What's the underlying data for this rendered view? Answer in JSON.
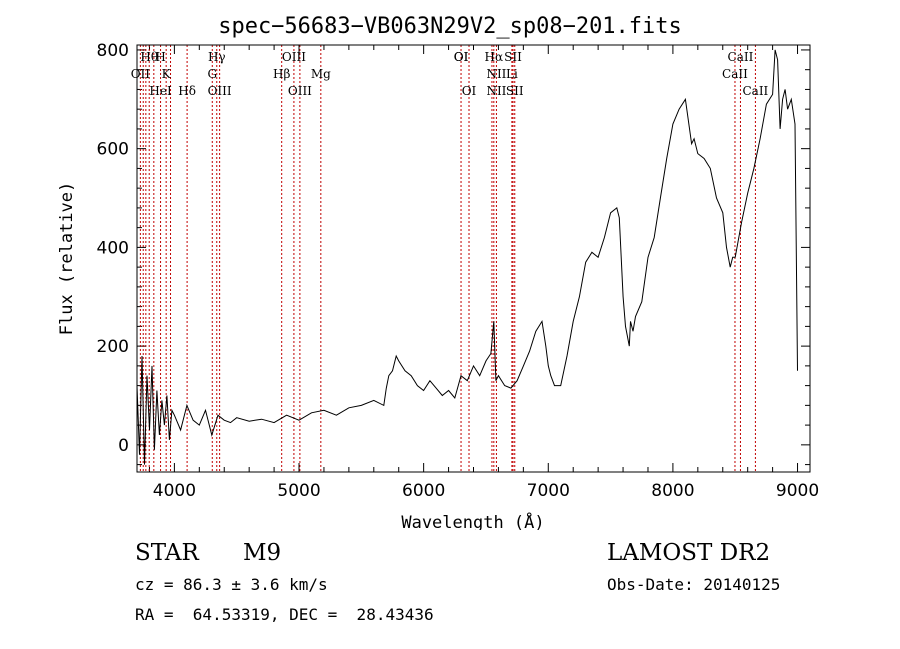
{
  "chart_data": {
    "type": "line",
    "title": "spec−56683−VB063N29V2_sp08−201.fits",
    "xlabel": "Wavelength (Å)",
    "ylabel": "Flux (relative)",
    "xlim": [
      3700,
      9100
    ],
    "ylim": [
      -55,
      810
    ],
    "xticks": [
      4000,
      5000,
      6000,
      7000,
      8000,
      9000
    ],
    "yticks": [
      0,
      200,
      400,
      600,
      800
    ],
    "grid": false,
    "series": [
      {
        "x": [
          3700,
          3720,
          3740,
          3760,
          3780,
          3800,
          3820,
          3840,
          3860,
          3880,
          3900,
          3920,
          3940,
          3960,
          3980,
          4000,
          4050,
          4100,
          4150,
          4200,
          4250,
          4300,
          4350,
          4400,
          4450,
          4500,
          4600,
          4700,
          4800,
          4900,
          5000,
          5100,
          5200,
          5300,
          5400,
          5500,
          5600,
          5680,
          5700,
          5720,
          5750,
          5780,
          5800,
          5850,
          5900,
          5950,
          6000,
          6050,
          6100,
          6150,
          6200,
          6250,
          6300,
          6350,
          6400,
          6450,
          6500,
          6540,
          6563,
          6580,
          6600,
          6650,
          6700,
          6750,
          6800,
          6850,
          6900,
          6950,
          6980,
          7000,
          7020,
          7050,
          7100,
          7150,
          7200,
          7250,
          7300,
          7350,
          7400,
          7450,
          7500,
          7550,
          7570,
          7600,
          7620,
          7650,
          7660,
          7680,
          7700,
          7750,
          7800,
          7850,
          7900,
          7950,
          8000,
          8050,
          8100,
          8150,
          8170,
          8200,
          8250,
          8300,
          8350,
          8400,
          8430,
          8460,
          8480,
          8500,
          8550,
          8600,
          8650,
          8700,
          8750,
          8800,
          8820,
          8840,
          8860,
          8880,
          8900,
          8920,
          8950,
          8980,
          9000
        ],
        "y": [
          120,
          -20,
          180,
          -40,
          140,
          30,
          160,
          -10,
          110,
          20,
          90,
          40,
          100,
          10,
          70,
          60,
          30,
          80,
          50,
          40,
          70,
          20,
          60,
          50,
          45,
          55,
          48,
          52,
          45,
          60,
          50,
          65,
          70,
          60,
          75,
          80,
          90,
          80,
          115,
          140,
          150,
          180,
          170,
          150,
          140,
          120,
          110,
          130,
          115,
          100,
          110,
          95,
          140,
          130,
          160,
          140,
          170,
          185,
          250,
          130,
          140,
          120,
          115,
          130,
          160,
          190,
          230,
          250,
          200,
          160,
          140,
          120,
          120,
          180,
          250,
          300,
          370,
          390,
          380,
          420,
          470,
          480,
          460,
          300,
          240,
          200,
          250,
          230,
          260,
          290,
          380,
          420,
          500,
          580,
          650,
          680,
          700,
          610,
          620,
          590,
          580,
          560,
          500,
          470,
          400,
          360,
          380,
          380,
          450,
          510,
          560,
          620,
          690,
          710,
          800,
          780,
          640,
          700,
          720,
          680,
          700,
          650,
          150
        ]
      }
    ],
    "annotations": [
      "Hθ",
      "OII",
      "OI",
      "H",
      "K",
      "HeI",
      "Hδ",
      "Hγ",
      "G",
      "OIII",
      "Hβ",
      "OIII",
      "OIII",
      "Mg",
      "OI",
      "OI",
      "Hα",
      "NII",
      "NII",
      "SII",
      "Li",
      "SII",
      "CaII",
      "CaII",
      "CaII"
    ]
  },
  "info": {
    "class_label": "STAR",
    "subclass_label": "M9",
    "cz_label": "cz = 86.3 ± 3.6 km/s",
    "coords_label": "RA =  64.53319, DEC =  28.43436",
    "survey_label": "LAMOST DR2",
    "obsdate_label": "Obs-Date: 20140125"
  }
}
